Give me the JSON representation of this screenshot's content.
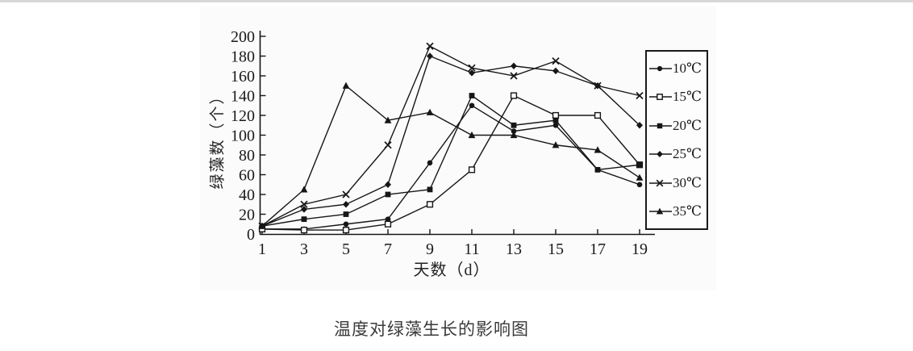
{
  "page": {
    "caption": "温度对绿藻生长的影响图",
    "top_bar_color": "#d7d7d7",
    "background_color": "#ffffff"
  },
  "chart_data": {
    "type": "line",
    "title": "",
    "xlabel": "天数（d）",
    "ylabel": "绿藻数（个）",
    "x": [
      1,
      3,
      5,
      7,
      9,
      11,
      13,
      15,
      17,
      19
    ],
    "x_ticks": [
      1,
      3,
      5,
      7,
      9,
      11,
      13,
      15,
      17,
      19
    ],
    "xlim": [
      1,
      19
    ],
    "y_ticks": [
      0,
      20,
      40,
      60,
      80,
      100,
      120,
      140,
      160,
      180,
      200
    ],
    "ylim": [
      0,
      200
    ],
    "grid": false,
    "legend_position": "right",
    "line_color": "#161616",
    "series": [
      {
        "name": "10℃",
        "marker": "circle",
        "values": [
          5,
          5,
          10,
          15,
          72,
          130,
          104,
          110,
          65,
          50
        ]
      },
      {
        "name": "15℃",
        "marker": "open-square",
        "values": [
          5,
          4,
          4,
          10,
          30,
          65,
          140,
          120,
          120,
          70
        ]
      },
      {
        "name": "20℃",
        "marker": "square",
        "values": [
          8,
          15,
          20,
          40,
          45,
          140,
          110,
          115,
          65,
          70
        ]
      },
      {
        "name": "25℃",
        "marker": "diamond",
        "values": [
          8,
          25,
          30,
          50,
          180,
          163,
          170,
          165,
          150,
          110
        ]
      },
      {
        "name": "30℃",
        "marker": "x",
        "values": [
          8,
          30,
          40,
          90,
          190,
          168,
          160,
          175,
          150,
          140
        ]
      },
      {
        "name": "35℃",
        "marker": "triangle",
        "values": [
          8,
          45,
          150,
          115,
          123,
          100,
          100,
          90,
          85,
          57
        ]
      }
    ]
  }
}
